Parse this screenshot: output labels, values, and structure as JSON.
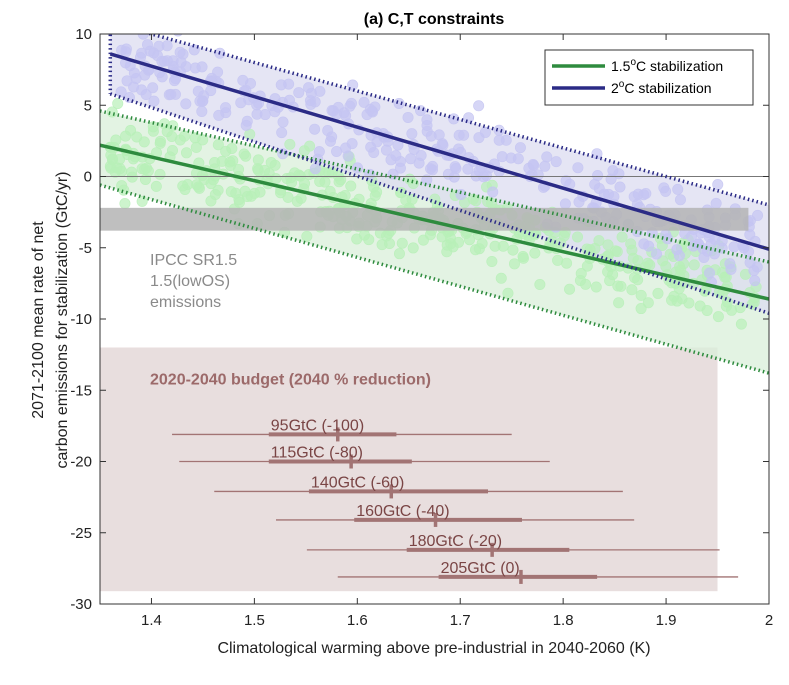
{
  "chart_data": {
    "type": "scatter",
    "title": "(a) C,T constraints",
    "xlabel": "Climatological warming above pre-industrial in 2040-2060 (K)",
    "ylabel_lines": [
      "2071-2100 mean rate of net",
      "carbon emissions for stabilization (GtC/yr)"
    ],
    "xlim": [
      1.35,
      2.0
    ],
    "ylim": [
      -30,
      10
    ],
    "x_ticks": [
      "1.4",
      "1.5",
      "1.6",
      "1.7",
      "1.8",
      "1.9",
      "2"
    ],
    "x_tick_values": [
      1.4,
      1.5,
      1.6,
      1.7,
      1.8,
      1.9,
      2.0
    ],
    "y_ticks": [
      "10",
      "5",
      "0",
      "-5",
      "-10",
      "-15",
      "-20",
      "-25",
      "-30"
    ],
    "y_tick_values": [
      10,
      5,
      0,
      -5,
      -10,
      -15,
      -20,
      -25,
      -30
    ],
    "grid": false,
    "legend_position": "top-right",
    "series": [
      {
        "name": "1.5°C stabilization",
        "legend_main": "1.5",
        "legend_sup": "o",
        "legend_rest": "C stabilization",
        "color": "#2e8b3e",
        "scatter_color": "#b8f0b8",
        "band_color": "#d9efda",
        "fit": {
          "x": [
            1.35,
            2.0
          ],
          "y": [
            2.2,
            -8.6
          ]
        },
        "upper": {
          "x": [
            1.35,
            2.0
          ],
          "y": [
            4.6,
            -6.0
          ]
        },
        "lower": {
          "x": [
            1.35,
            2.0
          ],
          "y": [
            -0.6,
            -13.8
          ]
        }
      },
      {
        "name": "2°C stabilization",
        "legend_main": "2",
        "legend_sup": "o",
        "legend_rest": "C stabilization",
        "color": "#2b2b86",
        "scatter_color": "#c5c5f2",
        "band_color": "#dcdcf0",
        "fit": {
          "x": [
            1.36,
            2.0
          ],
          "y": [
            8.6,
            -5.1
          ]
        },
        "upper": {
          "x": [
            1.36,
            2.0
          ],
          "y": [
            10.8,
            -2.0
          ]
        },
        "lower": {
          "x": [
            1.36,
            2.0
          ],
          "y": [
            5.8,
            -9.6
          ]
        }
      }
    ],
    "reference_line": {
      "y": 0,
      "color": "#777777"
    },
    "ipcc_band": {
      "y": [
        -3.8,
        -2.2
      ],
      "color": "#b4b4b4",
      "label_lines": [
        "IPCC SR1.5",
        "1.5(lowOS)",
        "emissions"
      ]
    },
    "budget_panel": {
      "x": [
        1.35,
        1.95
      ],
      "y": [
        -29.1,
        -12.0
      ],
      "color": "#e8dede",
      "title": "2020-2040 budget (2040 % reduction)",
      "bars_color": "#a27474",
      "bars": [
        {
          "label": "95GtC (-100)",
          "y": -18.1,
          "median": 1.581,
          "iqr": [
            1.514,
            1.638
          ],
          "range": [
            1.42,
            1.75
          ]
        },
        {
          "label": "115GtC (-80)",
          "y": -20.0,
          "median": 1.594,
          "iqr": [
            1.514,
            1.653
          ],
          "range": [
            1.427,
            1.787
          ]
        },
        {
          "label": "140GtC (-60)",
          "y": -22.1,
          "median": 1.633,
          "iqr": [
            1.553,
            1.727
          ],
          "range": [
            1.461,
            1.858
          ]
        },
        {
          "label": "160GtC (-40)",
          "y": -24.1,
          "median": 1.676,
          "iqr": [
            1.597,
            1.76
          ],
          "range": [
            1.521,
            1.869
          ]
        },
        {
          "label": "180GtC (-20)",
          "y": -26.2,
          "median": 1.731,
          "iqr": [
            1.648,
            1.806
          ],
          "range": [
            1.551,
            1.952
          ]
        },
        {
          "label": "205GtC (0)",
          "y": -28.1,
          "median": 1.759,
          "iqr": [
            1.679,
            1.833
          ],
          "range": [
            1.581,
            1.97
          ]
        }
      ]
    }
  }
}
